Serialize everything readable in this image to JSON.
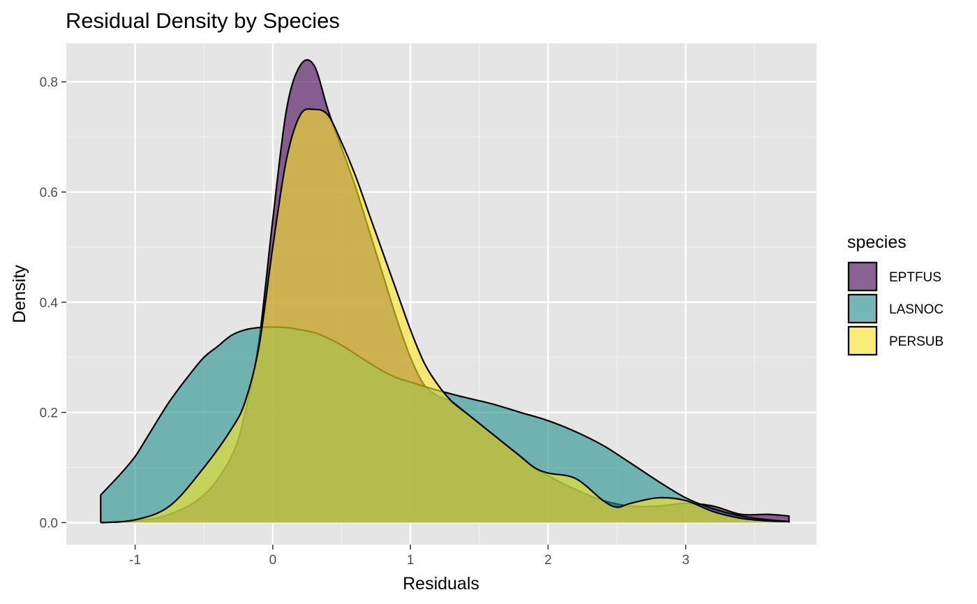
{
  "chart_data": {
    "type": "area",
    "title": "Residual Density by Species",
    "xlabel": "Residuals",
    "ylabel": "Density",
    "xlim": [
      -1.5,
      3.95
    ],
    "ylim": [
      -0.04,
      0.87
    ],
    "x_ticks": [
      -1,
      0,
      1,
      2,
      3
    ],
    "y_ticks": [
      0.0,
      0.2,
      0.4,
      0.6,
      0.8
    ],
    "x_tick_labels": [
      "-1",
      "0",
      "1",
      "2",
      "3"
    ],
    "y_tick_labels": [
      "0.0",
      "0.2",
      "0.4",
      "0.6",
      "0.8"
    ],
    "grid": true,
    "panel_background": "#e5e5e5",
    "fill_opacity": 0.6,
    "legend": {
      "title": "species",
      "position": "right"
    },
    "series": [
      {
        "name": "EPTFUS",
        "color": "#440154",
        "x": [
          -1.25,
          -1.0,
          -0.75,
          -0.5,
          -0.3,
          -0.2,
          -0.1,
          0.0,
          0.1,
          0.2,
          0.3,
          0.4,
          0.5,
          0.6,
          0.7,
          0.8,
          0.9,
          1.0,
          1.1,
          1.2,
          1.3,
          1.4,
          1.5,
          1.6,
          1.7,
          1.8,
          1.9,
          2.0,
          2.2,
          2.4,
          2.6,
          2.8,
          3.0,
          3.2,
          3.4,
          3.6,
          3.75
        ],
        "values": [
          0.0,
          0.003,
          0.015,
          0.05,
          0.12,
          0.2,
          0.33,
          0.55,
          0.75,
          0.83,
          0.83,
          0.75,
          0.68,
          0.61,
          0.53,
          0.45,
          0.37,
          0.3,
          0.25,
          0.23,
          0.22,
          0.2,
          0.18,
          0.16,
          0.14,
          0.12,
          0.1,
          0.085,
          0.06,
          0.04,
          0.03,
          0.03,
          0.035,
          0.03,
          0.015,
          0.015,
          0.012
        ]
      },
      {
        "name": "LASNOC",
        "color": "#21908c",
        "x": [
          -1.25,
          -1.1,
          -1.0,
          -0.9,
          -0.75,
          -0.6,
          -0.5,
          -0.4,
          -0.3,
          -0.2,
          -0.1,
          0.0,
          0.1,
          0.2,
          0.3,
          0.4,
          0.5,
          0.6,
          0.7,
          0.8,
          0.9,
          1.0,
          1.2,
          1.4,
          1.6,
          1.8,
          2.0,
          2.2,
          2.4,
          2.6,
          2.8,
          3.0,
          3.2,
          3.4,
          3.6,
          3.75
        ],
        "values": [
          0.05,
          0.09,
          0.12,
          0.16,
          0.22,
          0.27,
          0.3,
          0.32,
          0.34,
          0.35,
          0.354,
          0.355,
          0.354,
          0.35,
          0.345,
          0.335,
          0.322,
          0.306,
          0.29,
          0.275,
          0.263,
          0.255,
          0.24,
          0.227,
          0.215,
          0.2,
          0.185,
          0.165,
          0.14,
          0.108,
          0.075,
          0.045,
          0.025,
          0.012,
          0.005,
          0.002
        ]
      },
      {
        "name": "PERSUB",
        "color": "#fde725",
        "x": [
          -1.25,
          -1.0,
          -0.75,
          -0.5,
          -0.3,
          -0.2,
          -0.1,
          0.0,
          0.1,
          0.2,
          0.3,
          0.4,
          0.5,
          0.6,
          0.7,
          0.8,
          0.9,
          1.0,
          1.1,
          1.2,
          1.3,
          1.4,
          1.5,
          1.6,
          1.7,
          1.8,
          1.9,
          2.0,
          2.2,
          2.4,
          2.5,
          2.6,
          2.8,
          3.0,
          3.2,
          3.4,
          3.6,
          3.75
        ],
        "values": [
          0.0,
          0.005,
          0.03,
          0.1,
          0.17,
          0.22,
          0.32,
          0.5,
          0.66,
          0.74,
          0.75,
          0.74,
          0.69,
          0.63,
          0.56,
          0.49,
          0.42,
          0.35,
          0.29,
          0.25,
          0.22,
          0.2,
          0.18,
          0.16,
          0.14,
          0.12,
          0.1,
          0.09,
          0.08,
          0.04,
          0.028,
          0.035,
          0.045,
          0.04,
          0.02,
          0.008,
          0.003,
          0.002
        ]
      }
    ]
  }
}
